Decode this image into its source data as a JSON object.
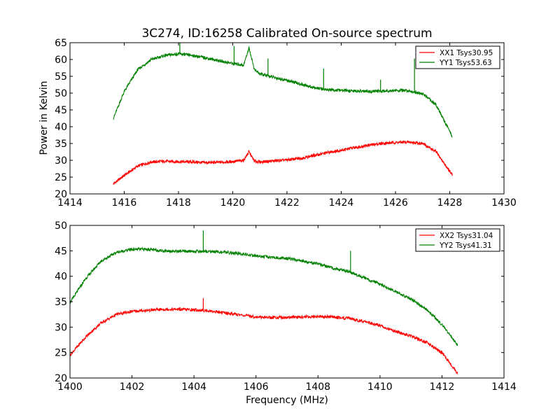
{
  "chart_data": [
    {
      "type": "line",
      "title": "3C274, ID:16258 Calibrated On-source spectrum",
      "xlabel": "",
      "ylabel": "Power in Kelvin",
      "xlim": [
        1414,
        1430
      ],
      "ylim": [
        20,
        65
      ],
      "xticks": [
        1414,
        1416,
        1418,
        1420,
        1422,
        1424,
        1426,
        1428,
        1430
      ],
      "yticks": [
        20,
        25,
        30,
        35,
        40,
        45,
        50,
        55,
        60,
        65
      ],
      "grid": false,
      "legend_position": "top-right",
      "series": [
        {
          "name": "XX1 Tsys30.95",
          "color": "#ff0000",
          "x": [
            1415.6,
            1416.0,
            1416.5,
            1417.0,
            1417.5,
            1418.0,
            1418.5,
            1419.0,
            1419.5,
            1420.0,
            1420.4,
            1420.6,
            1420.8,
            1421.0,
            1421.5,
            1422.0,
            1422.5,
            1423.0,
            1423.5,
            1424.0,
            1424.5,
            1425.0,
            1425.5,
            1426.0,
            1426.5,
            1427.0,
            1427.5,
            1428.1
          ],
          "y": [
            23.0,
            25.5,
            28.3,
            29.5,
            29.7,
            29.6,
            29.5,
            29.3,
            29.4,
            29.6,
            30.0,
            32.5,
            29.7,
            29.5,
            29.8,
            30.1,
            30.6,
            31.4,
            32.3,
            33.0,
            33.8,
            34.5,
            35.0,
            35.3,
            35.4,
            35.0,
            32.5,
            25.5
          ],
          "spikes": [
            {
              "x": 1420.6,
              "y": 32.8
            }
          ]
        },
        {
          "name": "YY1 Tsys53.63",
          "color": "#008000",
          "x": [
            1415.6,
            1416.0,
            1416.5,
            1417.0,
            1417.5,
            1418.0,
            1418.5,
            1419.0,
            1419.5,
            1420.0,
            1420.4,
            1420.6,
            1420.8,
            1421.0,
            1421.5,
            1422.0,
            1422.5,
            1423.0,
            1423.5,
            1424.0,
            1424.5,
            1425.0,
            1425.5,
            1426.0,
            1426.5,
            1427.0,
            1427.5,
            1428.1
          ],
          "y": [
            42.5,
            50.5,
            57.0,
            60.0,
            61.2,
            61.7,
            61.2,
            60.5,
            59.6,
            58.8,
            58.3,
            63.5,
            57.0,
            55.7,
            54.7,
            53.8,
            52.7,
            51.6,
            51.0,
            50.8,
            50.6,
            50.5,
            50.6,
            50.8,
            50.7,
            49.8,
            46.5,
            37.0
          ],
          "spikes": [
            {
              "x": 1418.05,
              "y": 65.0
            },
            {
              "x": 1420.05,
              "y": 64.0
            },
            {
              "x": 1421.3,
              "y": 60.3
            },
            {
              "x": 1423.35,
              "y": 57.3
            },
            {
              "x": 1425.45,
              "y": 54.0
            },
            {
              "x": 1426.7,
              "y": 60.3
            }
          ]
        }
      ]
    },
    {
      "type": "line",
      "title": "",
      "xlabel": "Frequency (MHz)",
      "ylabel": "",
      "xlim": [
        1400,
        1414
      ],
      "ylim": [
        20,
        50
      ],
      "xticks": [
        1400,
        1402,
        1404,
        1406,
        1408,
        1410,
        1412,
        1414
      ],
      "yticks": [
        20,
        25,
        30,
        35,
        40,
        45,
        50
      ],
      "grid": false,
      "legend_position": "top-right",
      "series": [
        {
          "name": "XX2 Tsys31.04",
          "color": "#ff0000",
          "x": [
            1400.0,
            1400.5,
            1401.0,
            1401.5,
            1402.0,
            1402.5,
            1403.0,
            1403.5,
            1404.0,
            1404.5,
            1405.0,
            1405.5,
            1406.0,
            1406.5,
            1407.0,
            1407.5,
            1408.0,
            1408.5,
            1409.0,
            1409.5,
            1410.0,
            1410.5,
            1411.0,
            1411.5,
            1412.0,
            1412.5
          ],
          "y": [
            24.5,
            28.0,
            30.8,
            32.5,
            33.1,
            33.3,
            33.5,
            33.5,
            33.4,
            33.2,
            32.8,
            32.4,
            32.0,
            31.9,
            31.9,
            32.0,
            32.1,
            32.0,
            31.7,
            31.1,
            30.3,
            29.2,
            28.2,
            27.0,
            25.0,
            21.0
          ],
          "spikes": [
            {
              "x": 1404.3,
              "y": 35.7
            }
          ]
        },
        {
          "name": "YY2 Tsys41.31",
          "color": "#008000",
          "x": [
            1400.0,
            1400.5,
            1401.0,
            1401.5,
            1402.0,
            1402.5,
            1403.0,
            1403.5,
            1404.0,
            1404.5,
            1405.0,
            1405.5,
            1406.0,
            1406.5,
            1407.0,
            1407.5,
            1408.0,
            1408.5,
            1409.0,
            1409.5,
            1410.0,
            1410.5,
            1411.0,
            1411.5,
            1412.0,
            1412.5
          ],
          "y": [
            34.8,
            39.5,
            43.0,
            44.7,
            45.3,
            45.3,
            45.0,
            44.9,
            44.9,
            44.9,
            44.7,
            44.4,
            44.0,
            43.7,
            43.5,
            43.0,
            42.4,
            41.6,
            40.9,
            39.7,
            38.4,
            37.0,
            35.5,
            33.5,
            30.5,
            26.5
          ],
          "spikes": [
            {
              "x": 1404.3,
              "y": 49.0
            },
            {
              "x": 1409.05,
              "y": 45.0
            }
          ]
        }
      ]
    }
  ]
}
